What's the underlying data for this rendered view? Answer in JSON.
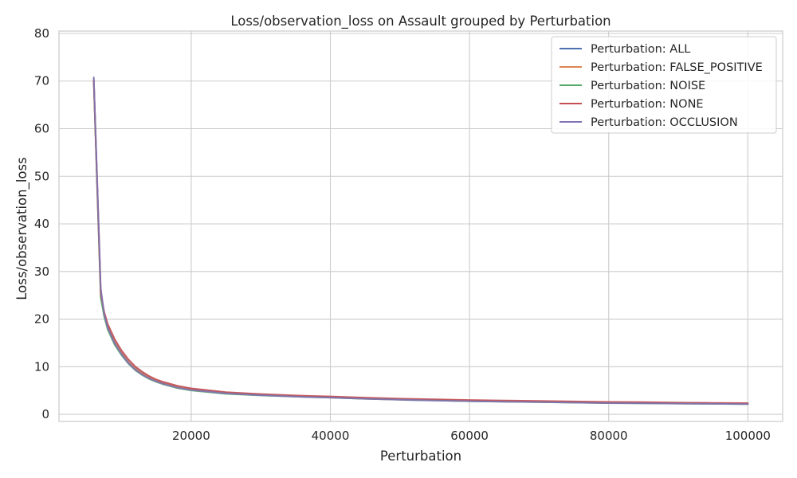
{
  "chart_data": {
    "type": "line",
    "title": "Loss/observation_loss on Assault grouped by Perturbation",
    "xlabel": "Perturbation",
    "ylabel": "Loss/observation_loss",
    "xlim": [
      1000,
      105000
    ],
    "ylim": [
      -1.5,
      80.5
    ],
    "xticks": [
      20000,
      40000,
      60000,
      80000,
      100000
    ],
    "yticks": [
      0,
      10,
      20,
      30,
      40,
      50,
      60,
      70,
      80
    ],
    "grid": true,
    "legend_position": "top-right",
    "x": [
      6000,
      6500,
      7000,
      7500,
      8000,
      9000,
      10000,
      11000,
      12000,
      13000,
      14000,
      15000,
      16000,
      18000,
      20000,
      25000,
      30000,
      35000,
      40000,
      45000,
      50000,
      55000,
      60000,
      65000,
      70000,
      75000,
      80000,
      85000,
      90000,
      95000,
      100000
    ],
    "series": [
      {
        "name": "Perturbation: ALL",
        "color": "#4c72b0",
        "values": [
          70.5,
          48,
          26,
          21,
          18.5,
          15.2,
          12.9,
          11.0,
          9.6,
          8.6,
          7.8,
          7.1,
          6.6,
          5.8,
          5.3,
          4.5,
          4.1,
          3.8,
          3.6,
          3.35,
          3.15,
          3.0,
          2.85,
          2.75,
          2.6,
          2.55,
          2.45,
          2.4,
          2.3,
          2.25,
          2.2
        ]
      },
      {
        "name": "Perturbation: FALSE_POSITIVE",
        "color": "#dd8452",
        "values": [
          70.3,
          47.5,
          26,
          21,
          18.4,
          15.1,
          12.8,
          10.9,
          9.5,
          8.5,
          7.7,
          7.05,
          6.55,
          5.75,
          5.25,
          4.45,
          4.05,
          3.75,
          3.55,
          3.3,
          3.1,
          2.95,
          2.8,
          2.7,
          2.6,
          2.5,
          2.4,
          2.35,
          2.3,
          2.25,
          2.2
        ]
      },
      {
        "name": "Perturbation: NOISE",
        "color": "#55a868",
        "values": [
          69.5,
          47,
          24.5,
          20.5,
          17.8,
          14.6,
          12.4,
          10.6,
          9.2,
          8.2,
          7.4,
          6.8,
          6.3,
          5.5,
          5.0,
          4.3,
          3.95,
          3.7,
          3.5,
          3.25,
          3.05,
          2.9,
          2.75,
          2.65,
          2.55,
          2.45,
          2.35,
          2.3,
          2.25,
          2.2,
          2.15
        ]
      },
      {
        "name": "Perturbation: NONE",
        "color": "#c44e52",
        "values": [
          70.0,
          48,
          25.5,
          21.5,
          19.0,
          15.8,
          13.4,
          11.5,
          10.0,
          8.9,
          8.0,
          7.3,
          6.8,
          6.0,
          5.45,
          4.65,
          4.25,
          3.95,
          3.75,
          3.5,
          3.3,
          3.15,
          3.0,
          2.9,
          2.8,
          2.7,
          2.6,
          2.55,
          2.45,
          2.4,
          2.35
        ]
      },
      {
        "name": "Perturbation: OCCLUSION",
        "color": "#8172b3",
        "values": [
          70.8,
          49,
          26.5,
          21.0,
          18.2,
          14.9,
          12.6,
          10.7,
          9.3,
          8.3,
          7.5,
          6.9,
          6.4,
          5.6,
          5.1,
          4.4,
          4.0,
          3.7,
          3.5,
          3.25,
          3.05,
          2.9,
          2.75,
          2.65,
          2.55,
          2.45,
          2.35,
          2.3,
          2.25,
          2.2,
          2.15
        ]
      }
    ]
  }
}
